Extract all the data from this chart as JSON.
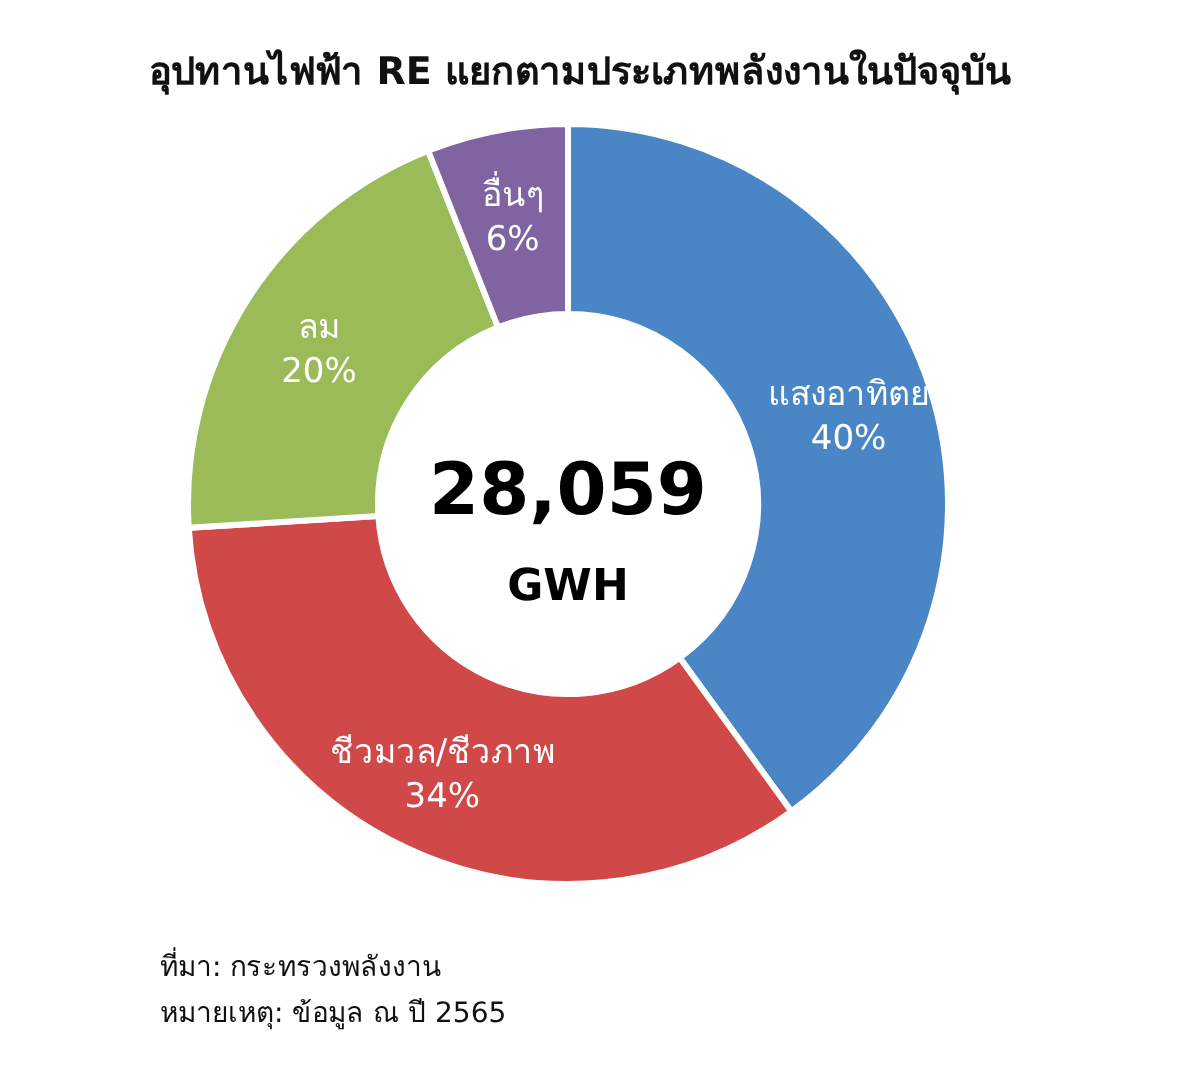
{
  "chart_data": {
    "type": "donut",
    "title": "อุปทานไฟฟ้า RE แยกตามประเภทพลังงานในปัจจุบัน",
    "categories": [
      "แสงอาทิตย",
      "ชีวมวล/ชีวภาพ",
      "ลม",
      "อื่นๆ"
    ],
    "values": [
      40,
      34,
      20,
      6
    ],
    "colors": [
      "#4a86c6",
      "#d04848",
      "#9bbb59",
      "#8064a2"
    ],
    "value_labels": [
      "40%",
      "34%",
      "20%",
      "6%"
    ],
    "annotations": [
      "28,059",
      "GWH",
      "ที่มา: กระทรวงพลังงาน",
      "หมายเหตุ: ข้อมูล ณ ปี 2565"
    ]
  }
}
